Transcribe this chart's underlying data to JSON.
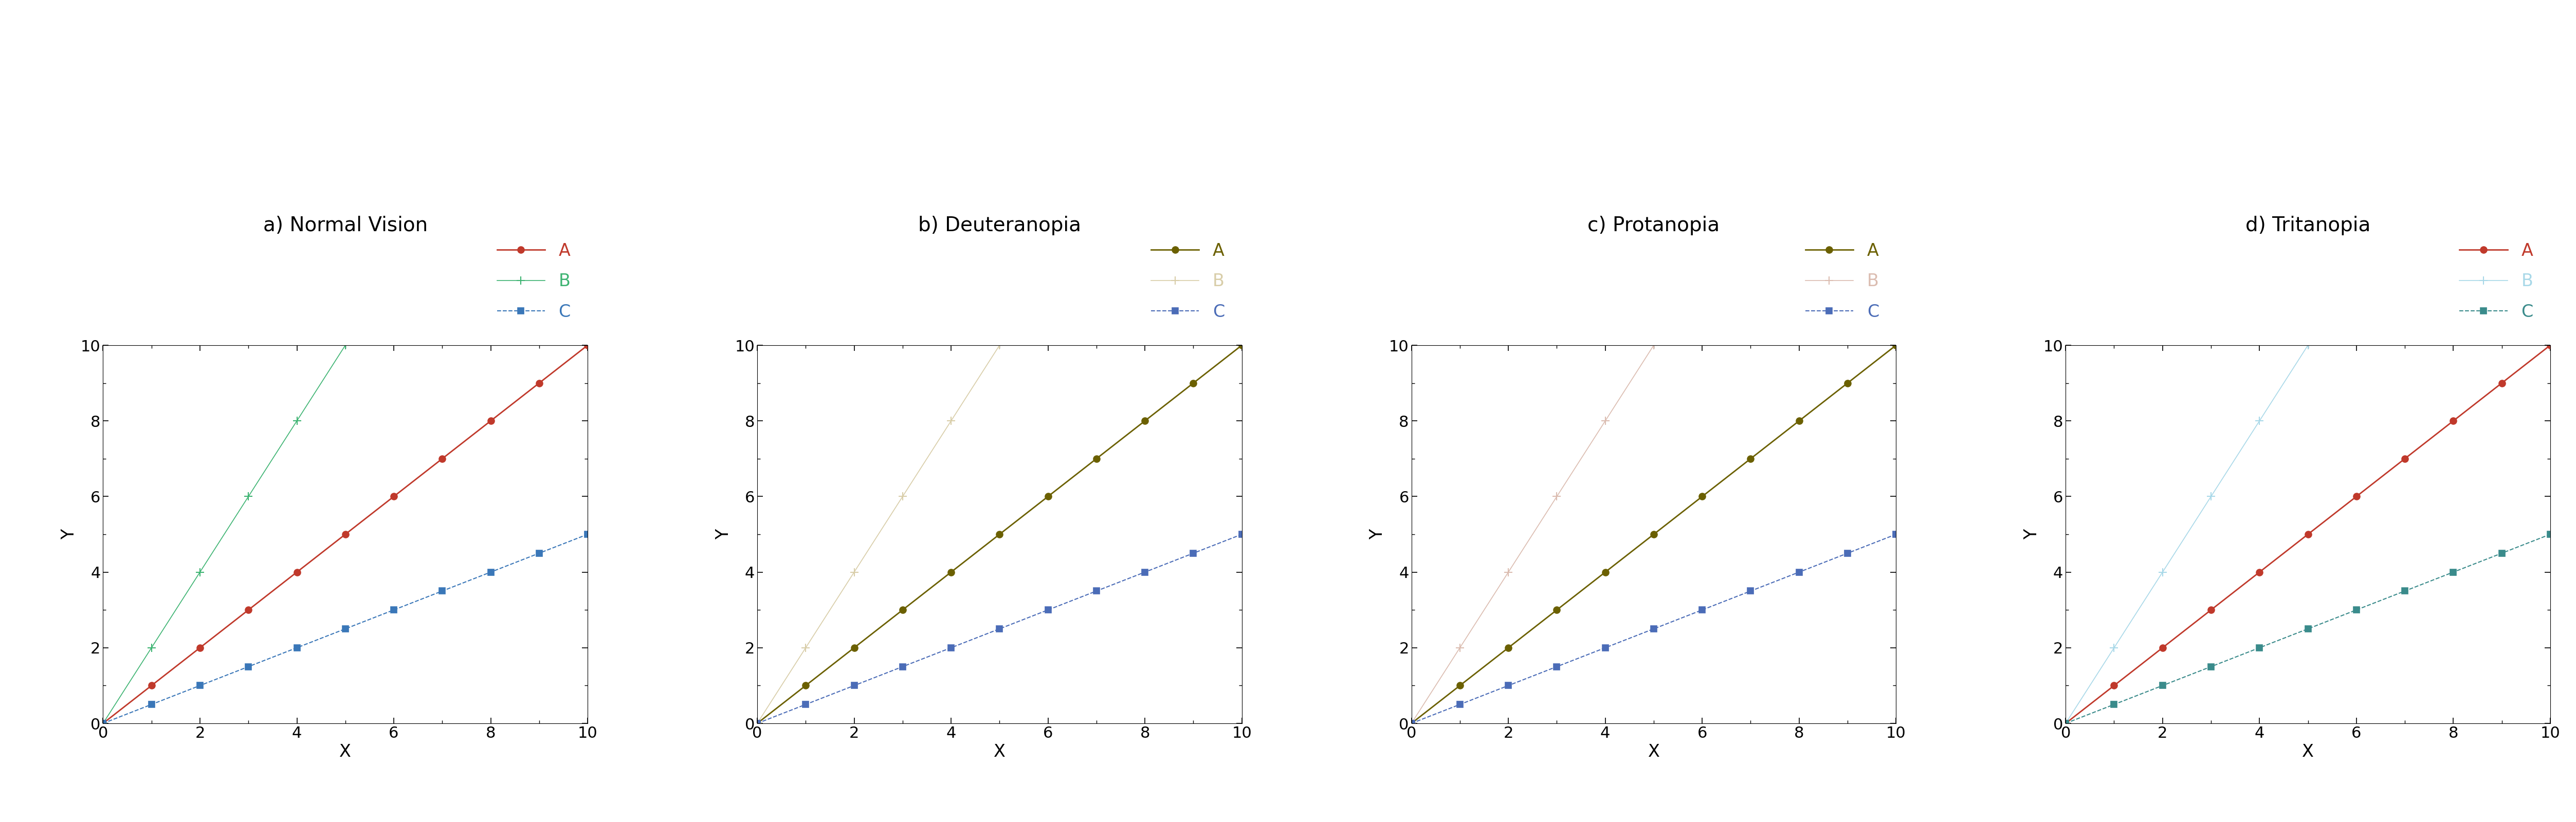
{
  "panels": [
    {
      "title": "a) Normal Vision",
      "lines": [
        {
          "label": "A",
          "color": "#C0392B",
          "linestyle": "-",
          "marker": "o",
          "markersize": 9,
          "linewidth": 2.0,
          "markeredgewidth": 1.5,
          "x": [
            0,
            1,
            2,
            3,
            4,
            5,
            6,
            7,
            8,
            9,
            10
          ],
          "y": [
            0,
            1,
            2,
            3,
            4,
            5,
            6,
            7,
            8,
            9,
            10
          ]
        },
        {
          "label": "B",
          "color": "#3CB371",
          "linestyle": "-",
          "marker": "+",
          "markersize": 12,
          "linewidth": 1.2,
          "markeredgewidth": 1.5,
          "x": [
            0,
            1,
            2,
            3,
            4,
            5
          ],
          "y": [
            0,
            2,
            4,
            6,
            8,
            10
          ]
        },
        {
          "label": "C",
          "color": "#3A77B8",
          "linestyle": "--",
          "marker": "s",
          "markersize": 8,
          "linewidth": 1.5,
          "markeredgewidth": 1.2,
          "x": [
            0,
            1,
            2,
            3,
            4,
            5,
            6,
            7,
            8,
            9,
            10
          ],
          "y": [
            0,
            0.5,
            1.0,
            1.5,
            2.0,
            2.5,
            3.0,
            3.5,
            4.0,
            4.5,
            5.0
          ]
        }
      ]
    },
    {
      "title": "b) Deuteranopia",
      "lines": [
        {
          "label": "A",
          "color": "#6B6000",
          "linestyle": "-",
          "marker": "o",
          "markersize": 9,
          "linewidth": 2.0,
          "markeredgewidth": 1.5,
          "x": [
            0,
            1,
            2,
            3,
            4,
            5,
            6,
            7,
            8,
            9,
            10
          ],
          "y": [
            0,
            1,
            2,
            3,
            4,
            5,
            6,
            7,
            8,
            9,
            10
          ]
        },
        {
          "label": "B",
          "color": "#D8CDA8",
          "linestyle": "-",
          "marker": "+",
          "markersize": 12,
          "linewidth": 1.2,
          "markeredgewidth": 1.5,
          "x": [
            0,
            1,
            2,
            3,
            4,
            5
          ],
          "y": [
            0,
            2,
            4,
            6,
            8,
            10
          ]
        },
        {
          "label": "C",
          "color": "#4B6CB7",
          "linestyle": "--",
          "marker": "s",
          "markersize": 8,
          "linewidth": 1.5,
          "markeredgewidth": 1.2,
          "x": [
            0,
            1,
            2,
            3,
            4,
            5,
            6,
            7,
            8,
            9,
            10
          ],
          "y": [
            0,
            0.5,
            1.0,
            1.5,
            2.0,
            2.5,
            3.0,
            3.5,
            4.0,
            4.5,
            5.0
          ]
        }
      ]
    },
    {
      "title": "c) Protanopia",
      "lines": [
        {
          "label": "A",
          "color": "#6B6000",
          "linestyle": "-",
          "marker": "o",
          "markersize": 9,
          "linewidth": 2.0,
          "markeredgewidth": 1.5,
          "x": [
            0,
            1,
            2,
            3,
            4,
            5,
            6,
            7,
            8,
            9,
            10
          ],
          "y": [
            0,
            1,
            2,
            3,
            4,
            5,
            6,
            7,
            8,
            9,
            10
          ]
        },
        {
          "label": "B",
          "color": "#DBBCB0",
          "linestyle": "-",
          "marker": "+",
          "markersize": 12,
          "linewidth": 1.2,
          "markeredgewidth": 1.5,
          "x": [
            0,
            1,
            2,
            3,
            4,
            5
          ],
          "y": [
            0,
            2,
            4,
            6,
            8,
            10
          ]
        },
        {
          "label": "C",
          "color": "#4B6CB7",
          "linestyle": "--",
          "marker": "s",
          "markersize": 8,
          "linewidth": 1.5,
          "markeredgewidth": 1.2,
          "x": [
            0,
            1,
            2,
            3,
            4,
            5,
            6,
            7,
            8,
            9,
            10
          ],
          "y": [
            0,
            0.5,
            1.0,
            1.5,
            2.0,
            2.5,
            3.0,
            3.5,
            4.0,
            4.5,
            5.0
          ]
        }
      ]
    },
    {
      "title": "d) Tritanopia",
      "lines": [
        {
          "label": "A",
          "color": "#C0392B",
          "linestyle": "-",
          "marker": "o",
          "markersize": 9,
          "linewidth": 2.0,
          "markeredgewidth": 1.5,
          "x": [
            0,
            1,
            2,
            3,
            4,
            5,
            6,
            7,
            8,
            9,
            10
          ],
          "y": [
            0,
            1,
            2,
            3,
            4,
            5,
            6,
            7,
            8,
            9,
            10
          ]
        },
        {
          "label": "B",
          "color": "#A8D8E8",
          "linestyle": "-",
          "marker": "+",
          "markersize": 12,
          "linewidth": 1.2,
          "markeredgewidth": 1.5,
          "x": [
            0,
            1,
            2,
            3,
            4,
            5
          ],
          "y": [
            0,
            2,
            4,
            6,
            8,
            10
          ]
        },
        {
          "label": "C",
          "color": "#3A8B8B",
          "linestyle": "--",
          "marker": "s",
          "markersize": 8,
          "linewidth": 1.5,
          "markeredgewidth": 1.2,
          "x": [
            0,
            1,
            2,
            3,
            4,
            5,
            6,
            7,
            8,
            9,
            10
          ],
          "y": [
            0,
            0.5,
            1.0,
            1.5,
            2.0,
            2.5,
            3.0,
            3.5,
            4.0,
            4.5,
            5.0
          ]
        }
      ]
    }
  ],
  "xlabel": "X",
  "ylabel": "Y",
  "xlim": [
    0,
    10
  ],
  "ylim": [
    0,
    10
  ],
  "xticks": [
    0,
    2,
    4,
    6,
    8,
    10
  ],
  "yticks": [
    0,
    2,
    4,
    6,
    8,
    10
  ],
  "title_fontsize": 28,
  "label_fontsize": 24,
  "tick_fontsize": 22,
  "legend_fontsize": 24,
  "background_color": "#ffffff"
}
